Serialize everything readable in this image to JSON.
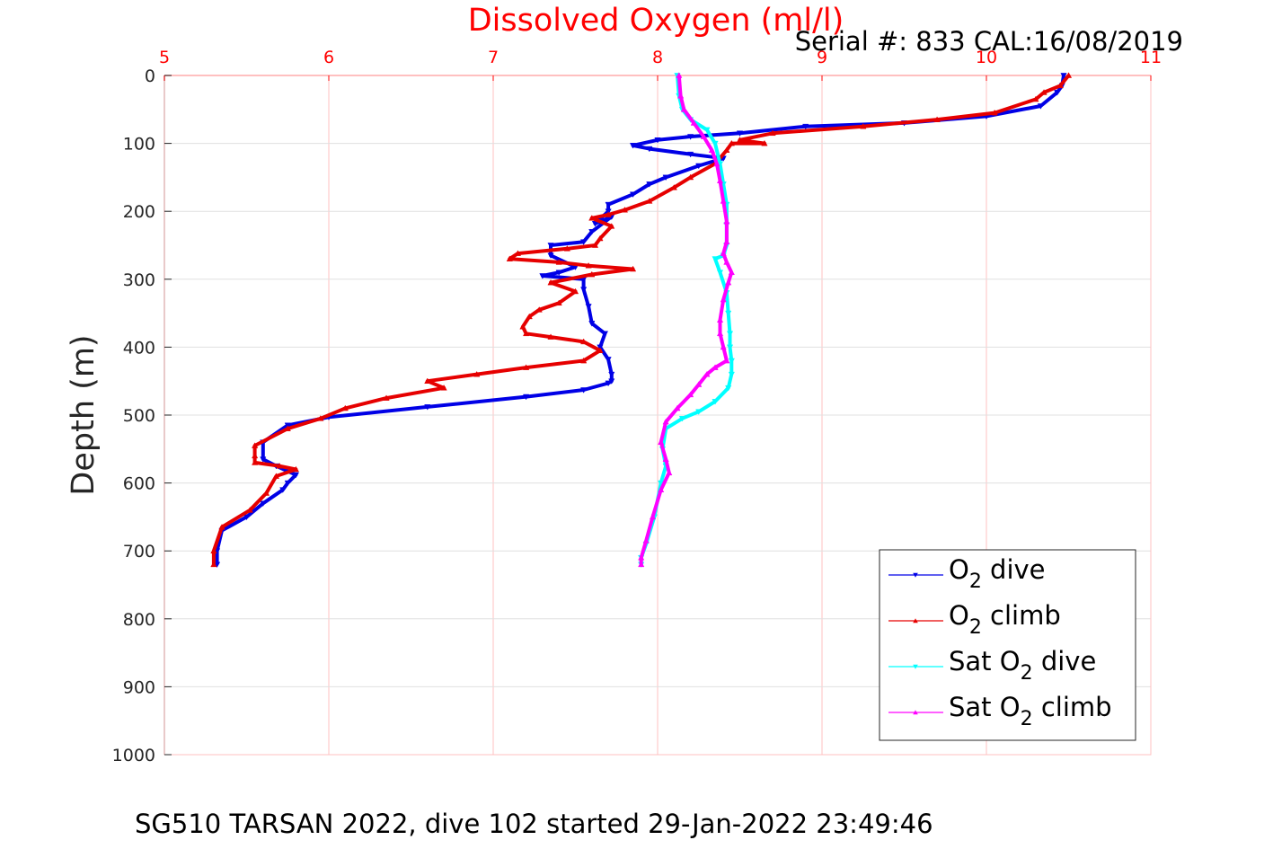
{
  "colors": {
    "top_axis": "#ff0000",
    "left_axis": "#262626",
    "grid": "#ffc0c0",
    "o2_dive": "#0000e6",
    "o2_climb": "#e60000",
    "sat_dive": "#00ffff",
    "sat_climb": "#ff00ff"
  },
  "chart_data": {
    "type": "line",
    "title": "Dissolved Oxygen (ml/l)",
    "subtitle": "Serial #: 833  CAL:16/08/2019",
    "caption": "SG510 TARSAN 2022, dive 102 started 29-Jan-2022 23:49:46",
    "xlabel": "",
    "ylabel": "Depth (m)",
    "xlim": [
      5,
      11
    ],
    "ylim": [
      0,
      1000
    ],
    "y_reversed": true,
    "x_axis_position": "top",
    "grid": true,
    "legend_position": "bottom-right",
    "x_ticks": [
      "5",
      "6",
      "7",
      "8",
      "9",
      "10",
      "11"
    ],
    "y_ticks": [
      "0",
      "100",
      "200",
      "300",
      "400",
      "500",
      "600",
      "700",
      "800",
      "900",
      "1000"
    ],
    "series": [
      {
        "name": "O2 dive",
        "legend_main": "O",
        "legend_sub": "2",
        "legend_rest": " dive",
        "color_key": "o2_dive",
        "marker": "triangle-down",
        "x": [
          10.47,
          10.46,
          10.43,
          10.33,
          10.0,
          9.5,
          8.9,
          8.5,
          8.2,
          8.0,
          7.85,
          7.95,
          8.2,
          8.4,
          8.25,
          8.05,
          7.95,
          7.85,
          7.7,
          7.7,
          7.62,
          7.72,
          7.6,
          7.55,
          7.35,
          7.35,
          7.5,
          7.4,
          7.3,
          7.55,
          7.55,
          7.58,
          7.6,
          7.68,
          7.65,
          7.7,
          7.72,
          7.72,
          7.7,
          7.55,
          7.2,
          6.6,
          6.0,
          5.75,
          5.6,
          5.6,
          5.68,
          5.8,
          5.75,
          5.72,
          5.6,
          5.5,
          5.35,
          5.32,
          5.32
        ],
        "y": [
          0,
          15,
          25,
          45,
          60,
          70,
          75,
          85,
          90,
          95,
          103,
          108,
          116,
          122,
          133,
          150,
          160,
          175,
          190,
          200,
          218,
          208,
          230,
          245,
          250,
          265,
          282,
          290,
          295,
          300,
          315,
          340,
          365,
          380,
          400,
          418,
          440,
          450,
          453,
          463,
          473,
          488,
          503,
          515,
          540,
          565,
          575,
          588,
          600,
          610,
          630,
          650,
          670,
          700,
          720
        ]
      },
      {
        "name": "O2 climb",
        "legend_main": "O",
        "legend_sub": "2",
        "legend_rest": " climb",
        "color_key": "o2_climb",
        "marker": "triangle-up",
        "x": [
          10.5,
          10.45,
          10.35,
          10.3,
          10.05,
          9.7,
          9.25,
          8.7,
          8.5,
          8.65,
          8.45,
          8.42,
          8.35,
          8.2,
          8.1,
          7.95,
          7.8,
          7.7,
          7.6,
          7.72,
          7.65,
          7.62,
          7.45,
          7.15,
          7.1,
          7.4,
          7.58,
          7.85,
          7.6,
          7.35,
          7.5,
          7.4,
          7.28,
          7.22,
          7.18,
          7.2,
          7.35,
          7.55,
          7.65,
          7.55,
          7.2,
          6.9,
          6.6,
          6.7,
          6.35,
          6.1,
          5.95,
          5.75,
          5.55,
          5.55,
          5.55,
          5.7,
          5.8,
          5.68,
          5.62,
          5.52,
          5.35,
          5.3,
          5.3
        ],
        "y": [
          0,
          15,
          25,
          35,
          55,
          65,
          75,
          85,
          95,
          100,
          100,
          110,
          130,
          150,
          165,
          185,
          198,
          205,
          210,
          222,
          240,
          250,
          255,
          262,
          270,
          275,
          280,
          285,
          293,
          305,
          318,
          335,
          345,
          355,
          370,
          380,
          385,
          392,
          405,
          420,
          430,
          440,
          450,
          460,
          475,
          490,
          505,
          520,
          545,
          560,
          570,
          575,
          580,
          590,
          615,
          640,
          665,
          700,
          720
        ]
      },
      {
        "name": "Sat O2 dive",
        "legend_main": "Sat O",
        "legend_sub": "2",
        "legend_rest": " dive",
        "color_key": "sat_dive",
        "marker": "triangle-down",
        "x": [
          8.12,
          8.13,
          8.15,
          8.2,
          8.3,
          8.35,
          8.38,
          8.4,
          8.42,
          8.42,
          8.42,
          8.4,
          8.35,
          8.38,
          8.42,
          8.43,
          8.44,
          8.44,
          8.45,
          8.45,
          8.43,
          8.35,
          8.25,
          8.15,
          8.05,
          8.03,
          8.05,
          8.02,
          7.98,
          7.93,
          7.9,
          7.9
        ],
        "y": [
          0,
          30,
          50,
          65,
          80,
          100,
          130,
          160,
          190,
          220,
          250,
          265,
          270,
          290,
          320,
          350,
          380,
          400,
          420,
          440,
          460,
          480,
          495,
          505,
          520,
          550,
          575,
          600,
          650,
          690,
          710,
          720
        ]
      },
      {
        "name": "Sat O2 climb",
        "legend_main": "Sat O",
        "legend_sub": "2",
        "legend_rest": " climb",
        "color_key": "sat_climb",
        "marker": "triangle-up",
        "x": [
          8.13,
          8.14,
          8.16,
          8.22,
          8.28,
          8.33,
          8.36,
          8.38,
          8.4,
          8.42,
          8.42,
          8.4,
          8.42,
          8.45,
          8.43,
          8.4,
          8.38,
          8.38,
          8.4,
          8.42,
          8.35,
          8.3,
          8.25,
          8.2,
          8.12,
          8.05,
          8.02,
          8.05,
          8.07,
          8.02,
          7.97,
          7.93,
          7.9,
          7.9
        ],
        "y": [
          0,
          30,
          50,
          70,
          90,
          110,
          130,
          155,
          185,
          215,
          245,
          262,
          275,
          290,
          305,
          330,
          360,
          380,
          400,
          420,
          430,
          440,
          455,
          470,
          490,
          510,
          540,
          565,
          585,
          610,
          650,
          685,
          710,
          720
        ]
      }
    ]
  }
}
